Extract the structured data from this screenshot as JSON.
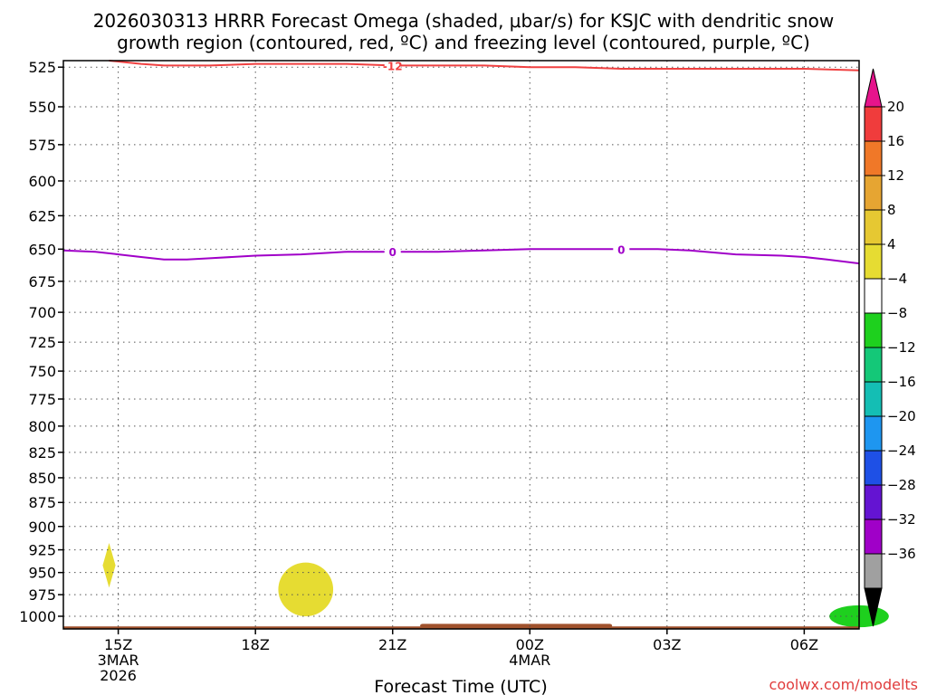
{
  "chart_data": {
    "type": "time-height cross section",
    "title_line1": "2026030313 HRRR Forecast Omega (shaded, μbar/s) for KSJC with dendritic snow",
    "title_line2": "growth region (contoured, red, ºC) and freezing level (contoured, purple, ºC)",
    "xlabel": "Forecast Time (UTC)",
    "credit": "coolwx.com/modelts",
    "x_range_hours": [
      13.8,
      31.2
    ],
    "y_range_mb": [
      1015,
      521
    ],
    "y_ticks": [
      {
        "mb": 525,
        "label": "525"
      },
      {
        "mb": 550,
        "label": "550"
      },
      {
        "mb": 575,
        "label": "575"
      },
      {
        "mb": 600,
        "label": "600"
      },
      {
        "mb": 625,
        "label": "625"
      },
      {
        "mb": 650,
        "label": "650"
      },
      {
        "mb": 675,
        "label": "675"
      },
      {
        "mb": 700,
        "label": "700"
      },
      {
        "mb": 725,
        "label": "725"
      },
      {
        "mb": 750,
        "label": "750"
      },
      {
        "mb": 775,
        "label": "775"
      },
      {
        "mb": 800,
        "label": "800"
      },
      {
        "mb": 825,
        "label": "825"
      },
      {
        "mb": 850,
        "label": "850"
      },
      {
        "mb": 875,
        "label": "875"
      },
      {
        "mb": 900,
        "label": "900"
      },
      {
        "mb": 925,
        "label": "925"
      },
      {
        "mb": 950,
        "label": "950"
      },
      {
        "mb": 975,
        "label": "975"
      },
      {
        "mb": 1000,
        "label": "1000"
      }
    ],
    "x_ticks": [
      {
        "hour": 15,
        "lines": [
          "15Z",
          "3MAR",
          "2026"
        ]
      },
      {
        "hour": 18,
        "lines": [
          "18Z"
        ]
      },
      {
        "hour": 21,
        "lines": [
          "21Z"
        ]
      },
      {
        "hour": 24,
        "lines": [
          "00Z",
          "4MAR"
        ]
      },
      {
        "hour": 27,
        "lines": [
          "03Z"
        ]
      },
      {
        "hour": 30,
        "lines": [
          "06Z"
        ]
      }
    ],
    "series": [
      {
        "name": "dendritic growth -12C",
        "color": "#f04040",
        "label": "-12",
        "label_at": {
          "hour": 21.0,
          "mb": 524
        },
        "points": [
          [
            14.8,
            521
          ],
          [
            15.5,
            523
          ],
          [
            16,
            524
          ],
          [
            17,
            524
          ],
          [
            18,
            523
          ],
          [
            19,
            523
          ],
          [
            20,
            523
          ],
          [
            21,
            524
          ],
          [
            22,
            524
          ],
          [
            23,
            524
          ],
          [
            24,
            525
          ],
          [
            25,
            525
          ],
          [
            26,
            526
          ],
          [
            27,
            526
          ],
          [
            28,
            526
          ],
          [
            29,
            526
          ],
          [
            30,
            526
          ],
          [
            31.2,
            527
          ]
        ]
      },
      {
        "name": "freezing level 0C",
        "color": "#a000c8",
        "label": "0",
        "label_at": {
          "hour": 21.0,
          "mb": 652
        },
        "label_at2": {
          "hour": 26.0,
          "mb": 650
        },
        "points": [
          [
            13.8,
            651
          ],
          [
            14.5,
            652
          ],
          [
            15,
            654
          ],
          [
            15.5,
            656
          ],
          [
            16,
            658
          ],
          [
            16.5,
            658
          ],
          [
            17,
            657
          ],
          [
            18,
            655
          ],
          [
            19,
            654
          ],
          [
            20,
            652
          ],
          [
            21,
            652
          ],
          [
            22,
            652
          ],
          [
            23,
            651
          ],
          [
            24,
            650
          ],
          [
            25,
            650
          ],
          [
            26,
            650
          ],
          [
            26.8,
            650
          ],
          [
            27.5,
            651
          ],
          [
            28.5,
            654
          ],
          [
            29.5,
            655
          ],
          [
            30,
            656
          ],
          [
            30.5,
            658
          ],
          [
            31.2,
            661
          ]
        ]
      }
    ],
    "omega_shading": [
      {
        "label": "4 to 8 μbar/s (yellow)",
        "center_hour": 14.8,
        "center_mb": 942,
        "half_width_hours": 0.14,
        "half_height_mb": 25,
        "shape": "diamond",
        "color": "#e6dc32"
      },
      {
        "label": "4 to 8 μbar/s (yellow)",
        "center_hour": 19.1,
        "center_mb": 969,
        "half_width_hours": 0.6,
        "half_height_mb": 31,
        "shape": "ellipse",
        "color": "#e6dc32"
      },
      {
        "label": "-8 to -4 μbar/s (green)",
        "center_hour": 31.2,
        "center_mb": 1000,
        "half_width_hours": 0.65,
        "half_height_mb": 13,
        "shape": "ellipse",
        "color": "#1ed01e"
      }
    ],
    "ground": {
      "color": "#a0522d",
      "top_mb": 1012,
      "bump_start_hour": 21.6,
      "bump_end_hour": 25.8,
      "bump_top_mb": 1009
    },
    "colorbar": {
      "labels": [
        "20",
        "16",
        "12",
        "8",
        "4",
        "−4",
        "−8",
        "−12",
        "−16",
        "−20",
        "−24",
        "−28",
        "−32",
        "−36"
      ],
      "colors": [
        "#f03c3c",
        "#f07828",
        "#e6a532",
        "#e6c832",
        "#e6dc32",
        "#ffffff",
        "#1ed01e",
        "#14c878",
        "#14beb4",
        "#1e96f0",
        "#1e50e6",
        "#6414d2",
        "#a000c8",
        "#a0a0a0"
      ],
      "top_arrow_color": "#e6148c",
      "bottom_arrow_color": "#000000"
    }
  }
}
